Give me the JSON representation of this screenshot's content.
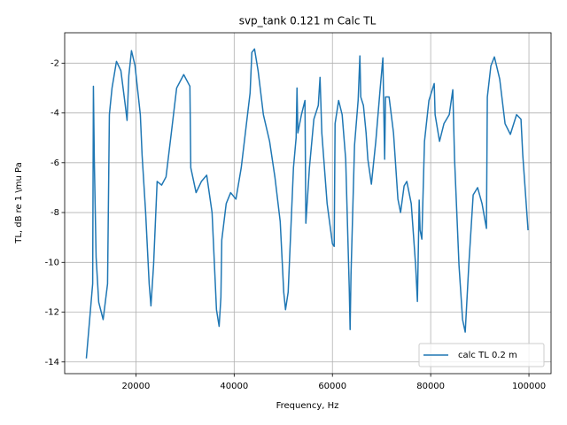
{
  "chart_data": {
    "type": "line",
    "title": "svp_tank 0.121 m Calc TL",
    "xlabel": "Frequency, Hz",
    "ylabel": "TL, dB re 1 \\mu Pa",
    "xlim": [
      5500,
      104500
    ],
    "ylim": [
      -14.47,
      -0.78
    ],
    "xticks": [
      20000,
      40000,
      60000,
      80000,
      100000
    ],
    "yticks": [
      -14,
      -12,
      -10,
      -8,
      -6,
      -4,
      -2
    ],
    "grid": true,
    "legend": "lower right",
    "x": [
      9910,
      11200,
      11350,
      11530,
      11900,
      12430,
      13330,
      14230,
      14600,
      14780,
      15140,
      16040,
      16940,
      17840,
      18200,
      18560,
      19100,
      19820,
      20900,
      21260,
      21980,
      22700,
      23060,
      23600,
      24320,
      25230,
      26130,
      27210,
      28290,
      29730,
      30990,
      31170,
      32250,
      33330,
      34410,
      35500,
      36400,
      36940,
      37300,
      37480,
      38380,
      39280,
      40360,
      41440,
      42520,
      43240,
      43600,
      44140,
      44860,
      45950,
      47210,
      48290,
      49370,
      50090,
      50450,
      50990,
      52070,
      52610,
      52790,
      52970,
      53690,
      54410,
      54590,
      55320,
      56220,
      57120,
      57480,
      57840,
      58920,
      60000,
      60360,
      60540,
      61260,
      61980,
      62700,
      63420,
      63600,
      63780,
      64500,
      65230,
      65590,
      65770,
      66310,
      66850,
      67210,
      67930,
      68830,
      69730,
      70270,
      70630,
      70810,
      71530,
      72430,
      73330,
      73870,
      74590,
      75140,
      76040,
      76940,
      77300,
      77660,
      77840,
      78200,
      78740,
      79640,
      80720,
      80900,
      81800,
      82700,
      83780,
      84500,
      84860,
      85770,
      86490,
      87030,
      87750,
      88650,
      89550,
      90450,
      91350,
      91530,
      92250,
      92970,
      94050,
      95140,
      96220,
      97480,
      98380,
      98740,
      99820
    ],
    "series": [
      {
        "name": "calc TL 0.2 m",
        "color": "#1f77b4",
        "values": [
          -13.86,
          -10.86,
          -2.93,
          -5.86,
          -9.8,
          -11.6,
          -12.3,
          -10.86,
          -4.07,
          -3.7,
          -3,
          -1.93,
          -2.3,
          -3.7,
          -4.3,
          -2.5,
          -1.5,
          -2.1,
          -4.07,
          -5.7,
          -8,
          -10.86,
          -11.75,
          -10.1,
          -6.75,
          -6.9,
          -6.57,
          -4.8,
          -3,
          -2.46,
          -2.93,
          -6.2,
          -7.2,
          -6.75,
          -6.5,
          -8,
          -11.9,
          -12.57,
          -11.4,
          -9.1,
          -7.64,
          -7.2,
          -7.46,
          -6.2,
          -4.4,
          -3.2,
          -1.57,
          -1.43,
          -2.29,
          -4.07,
          -5.14,
          -6.57,
          -8.36,
          -11.2,
          -11.9,
          -11.2,
          -6.2,
          -5,
          -3,
          -4.8,
          -4.07,
          -3.5,
          -8.43,
          -6.2,
          -4.25,
          -3.7,
          -2.57,
          -4.8,
          -7.64,
          -9.25,
          -9.36,
          -4.43,
          -3.5,
          -4.07,
          -5.86,
          -11,
          -12.7,
          -10.5,
          -5.3,
          -3.5,
          -1.71,
          -3.36,
          -3.7,
          -4.8,
          -5.86,
          -6.86,
          -5.14,
          -3,
          -1.79,
          -5.86,
          -3.36,
          -3.36,
          -4.8,
          -7.46,
          -8,
          -6.93,
          -6.75,
          -7.64,
          -10.14,
          -11.57,
          -7.5,
          -8.7,
          -9.07,
          -5.14,
          -3.5,
          -2.82,
          -4.07,
          -5.14,
          -4.43,
          -4.07,
          -3.07,
          -5.86,
          -10.14,
          -12.3,
          -12.8,
          -10.14,
          -7.29,
          -7,
          -7.64,
          -8.64,
          -3.36,
          -2.11,
          -1.75,
          -2.64,
          -4.43,
          -4.86,
          -4.07,
          -4.25,
          -5.68,
          -8.71
        ]
      }
    ]
  }
}
